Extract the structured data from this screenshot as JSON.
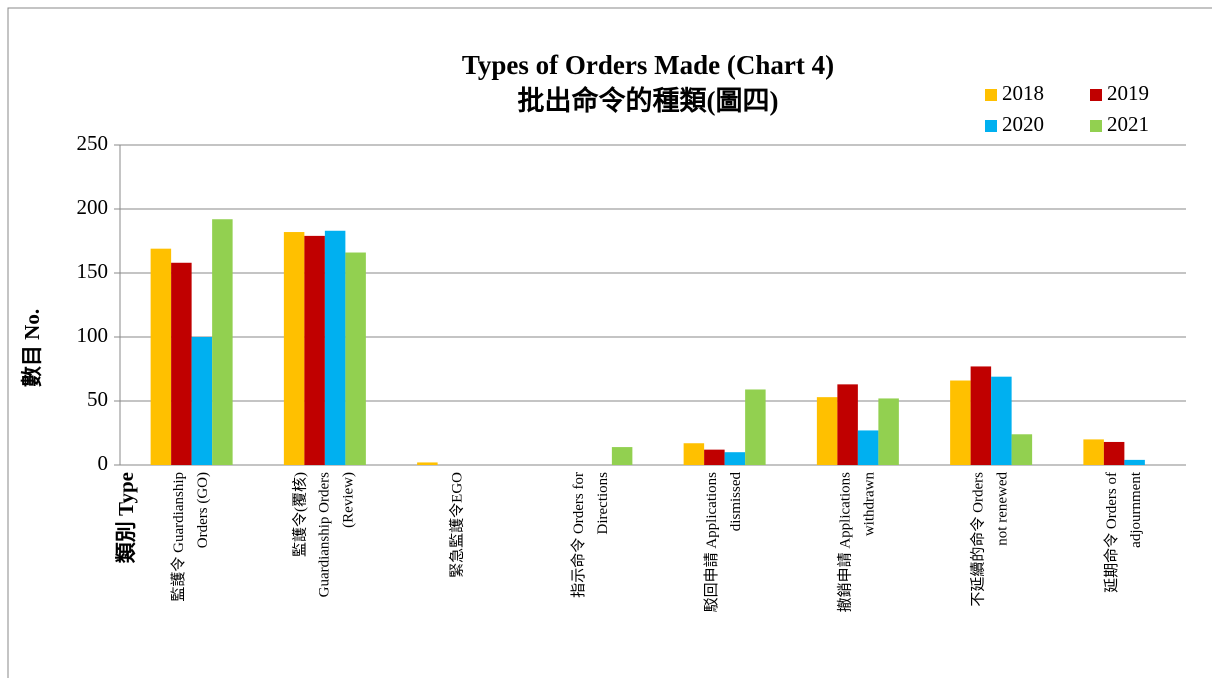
{
  "chart_data": {
    "type": "bar",
    "title": [
      "Types of Orders Made (Chart 4)",
      "批出命令的種類(圖四)"
    ],
    "y_label": "數目 No.",
    "x_label": "類別 Type",
    "categories": [
      [
        "監護令 Guardianship",
        "Orders (GO)"
      ],
      [
        "監護令(覆核)",
        "Guardianship Orders",
        "(Review)"
      ],
      [
        "緊急監護令EGO"
      ],
      [
        "指示命令 Orders for",
        "Directions"
      ],
      [
        "駁回申請 Applications",
        "dismissed"
      ],
      [
        "撤銷申請 Applications",
        "withdrawn"
      ],
      [
        "不延續的命令 Orders",
        "not renewed"
      ],
      [
        "延期命令 Orders of",
        "adjournment"
      ]
    ],
    "series": [
      {
        "name": "2018",
        "color": "#ffc000",
        "values": [
          169,
          182,
          2,
          0,
          17,
          53,
          66,
          20
        ]
      },
      {
        "name": "2019",
        "color": "#c00000",
        "values": [
          158,
          179,
          0,
          0,
          12,
          63,
          77,
          18
        ]
      },
      {
        "name": "2020",
        "color": "#00b0f0",
        "values": [
          100,
          183,
          0,
          0,
          10,
          27,
          69,
          4
        ]
      },
      {
        "name": "2021",
        "color": "#92d050",
        "values": [
          192,
          166,
          0,
          14,
          59,
          52,
          24,
          0
        ]
      }
    ],
    "ylim": [
      0,
      250
    ],
    "yticks": [
      0,
      50,
      100,
      150,
      200,
      250
    ],
    "grid": true,
    "legend": "top-right"
  }
}
